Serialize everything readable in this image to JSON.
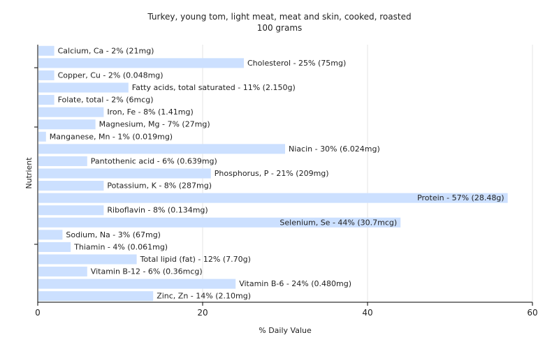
{
  "chart_data": {
    "type": "bar",
    "orientation": "horizontal",
    "title": "Turkey, young tom, light meat, meat and skin, cooked, roasted",
    "subtitle": "100 grams",
    "xlabel": "% Daily Value",
    "ylabel": "Nutrient",
    "xlim": [
      0,
      60
    ],
    "xticks": [
      0,
      20,
      40,
      60
    ],
    "grid": true,
    "bar_color": "#cce0ff",
    "categories": [
      "Calcium, Ca",
      "Cholesterol",
      "Copper, Cu",
      "Fatty acids, total saturated",
      "Folate, total",
      "Iron, Fe",
      "Magnesium, Mg",
      "Manganese, Mn",
      "Niacin",
      "Pantothenic acid",
      "Phosphorus, P",
      "Potassium, K",
      "Protein",
      "Riboflavin",
      "Selenium, Se",
      "Sodium, Na",
      "Thiamin",
      "Total lipid (fat)",
      "Vitamin B-12",
      "Vitamin B-6",
      "Zinc, Zn"
    ],
    "values": [
      2,
      25,
      2,
      11,
      2,
      8,
      7,
      1,
      30,
      6,
      21,
      8,
      57,
      8,
      44,
      3,
      4,
      12,
      6,
      24,
      14
    ],
    "labels": [
      "Calcium, Ca - 2% (21mg)",
      "Cholesterol - 25% (75mg)",
      "Copper, Cu - 2% (0.048mg)",
      "Fatty acids, total saturated - 11% (2.150g)",
      "Folate, total - 2% (6mcg)",
      "Iron, Fe - 8% (1.41mg)",
      "Magnesium, Mg - 7% (27mg)",
      "Manganese, Mn - 1% (0.019mg)",
      "Niacin - 30% (6.024mg)",
      "Pantothenic acid - 6% (0.639mg)",
      "Phosphorus, P - 21% (209mg)",
      "Potassium, K - 8% (287mg)",
      "Protein - 57% (28.48g)",
      "Riboflavin - 8% (0.134mg)",
      "Selenium, Se - 44% (30.7mcg)",
      "Sodium, Na - 3% (67mg)",
      "Thiamin - 4% (0.061mg)",
      "Total lipid (fat) - 12% (7.70g)",
      "Vitamin B-12 - 6% (0.36mcg)",
      "Vitamin B-6 - 24% (0.480mg)",
      "Zinc, Zn - 14% (2.10mg)"
    ]
  }
}
